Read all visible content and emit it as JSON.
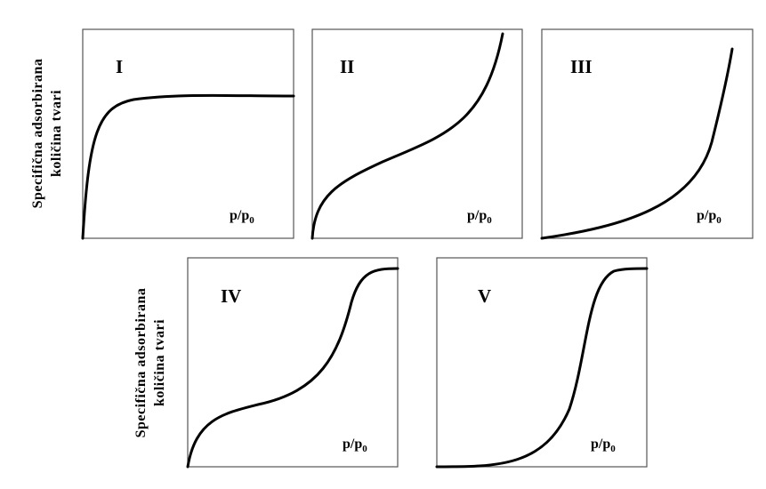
{
  "y_axis_label": [
    "Specifična adsorbirana",
    "količina tvari"
  ],
  "panels": [
    {
      "label": "I",
      "x_label": "p/p",
      "x_label_sub": "0"
    },
    {
      "label": "II",
      "x_label": "p/p",
      "x_label_sub": "0"
    },
    {
      "label": "III",
      "x_label": "p/p",
      "x_label_sub": "0"
    },
    {
      "label": "IV",
      "x_label": "p/p",
      "x_label_sub": "0"
    },
    {
      "label": "V",
      "x_label": "p/p",
      "x_label_sub": "0"
    }
  ]
}
